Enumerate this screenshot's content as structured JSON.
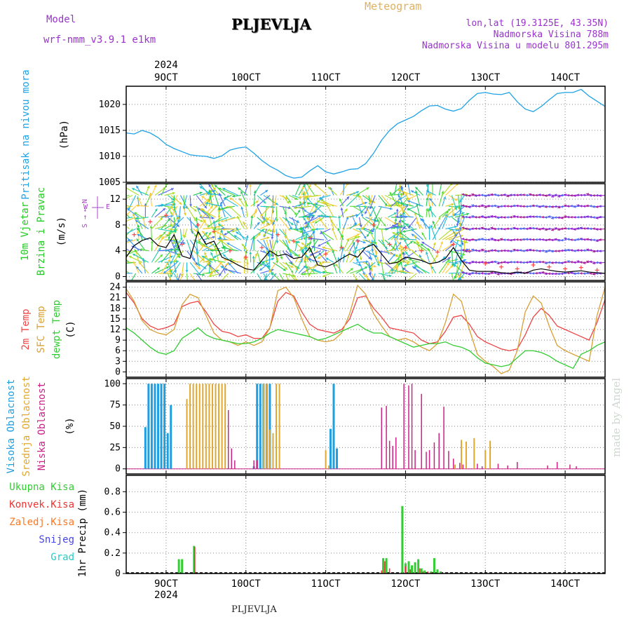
{
  "header": {
    "model_label": "Model",
    "model_name": "wrf-nmm_v3.9.1 e1km",
    "title": "PLJEVLJA",
    "product": "Meteogram",
    "lonlat": "lon,lat (19.3125E, 43.35N)",
    "elevation": "Nadmorska Visina 788m",
    "model_elevation": "Nadmorska Visina u modelu 801.295m",
    "footer_station": "PLJEVLJA",
    "watermark": "made by Angel"
  },
  "time_axis": {
    "year": "2024",
    "top_labels": [
      "9OCT",
      "10OCT",
      "11OCT",
      "12OCT",
      "13OCT",
      "14OCT"
    ],
    "bottom_labels": [
      "9OCT",
      "10OCT",
      "11OCT",
      "12OCT",
      "13OCT",
      "14OCT"
    ],
    "start_day": 8.5,
    "end_day": 14.5
  },
  "colors": {
    "pressure": "#1fa3e6",
    "t2m": "#ee4444",
    "sfc": "#d8a034",
    "dewpt": "#33cc33",
    "high_cloud": "#1f9ee0",
    "mid_cloud": "#e0a830",
    "low_cloud": "#cc2288",
    "total_precip": "#33cc33",
    "conv_precip": "#ee3333",
    "ice_precip": "#ff7722",
    "snow": "#4444ee",
    "graupel": "#22cccc",
    "wind_black": "#000000",
    "wind_gust": "#ff4444"
  },
  "chart_data": [
    {
      "type": "line",
      "panel": "pressure",
      "ylabel_1": "Pritisak na nivou mora",
      "ylabel_2": "(hPa)",
      "ylim": [
        1005,
        1023.5
      ],
      "yticks": [
        "1005",
        "1010",
        "1015",
        "1020"
      ],
      "series": [
        {
          "x": [
            8.5,
            8.6,
            8.7,
            8.8,
            8.9,
            9.0,
            9.1,
            9.2,
            9.3,
            9.4,
            9.5,
            9.6,
            9.7,
            9.8,
            9.9,
            10.0,
            10.1,
            10.2,
            10.3,
            10.4,
            10.5,
            10.6,
            10.7,
            10.8,
            10.9,
            11.0,
            11.1,
            11.2,
            11.3,
            11.4,
            11.5,
            11.6,
            11.7,
            11.8,
            11.9,
            12.0,
            12.1,
            12.2,
            12.3,
            12.4,
            12.5,
            12.6,
            12.7,
            12.8,
            12.9,
            13.0,
            13.1,
            13.2,
            13.3,
            13.4,
            13.5,
            13.6,
            13.7,
            13.8,
            13.9,
            14.0,
            14.1,
            14.2,
            14.3,
            14.4,
            14.5
          ],
          "values": [
            1014.5,
            1014.3,
            1015.0,
            1014.5,
            1013.6,
            1012.3,
            1011.5,
            1010.9,
            1010.3,
            1010.1,
            1010.0,
            1009.6,
            1010.1,
            1011.2,
            1011.6,
            1011.8,
            1010.6,
            1009.2,
            1008.1,
            1007.3,
            1006.3,
            1005.8,
            1006.0,
            1007.2,
            1008.2,
            1007.0,
            1006.6,
            1007.0,
            1007.5,
            1007.6,
            1008.6,
            1010.6,
            1013.1,
            1015.0,
            1016.3,
            1017.0,
            1017.7,
            1018.8,
            1019.7,
            1019.8,
            1019.1,
            1018.7,
            1019.2,
            1020.8,
            1022.1,
            1022.3,
            1022.0,
            1021.9,
            1022.3,
            1020.5,
            1019.1,
            1018.6,
            1019.6,
            1020.9,
            1022.1,
            1022.3,
            1022.3,
            1022.9,
            1021.6,
            1020.6,
            1019.6
          ]
        }
      ]
    },
    {
      "type": "line",
      "panel": "wind",
      "ylabel_1": "10m Vjetar",
      "ylabel_2": "Brzina i Pravac",
      "ylabel_3": "(m/s)",
      "compass_labels": [
        "N",
        "W",
        "E",
        "S"
      ],
      "ylim": [
        -0.6,
        14.4
      ],
      "yticks": [
        "0",
        "4",
        "8",
        "12"
      ],
      "series": [
        {
          "x": [
            8.5,
            8.6,
            8.7,
            8.8,
            8.9,
            9.0,
            9.1,
            9.2,
            9.3,
            9.4,
            9.5,
            9.6,
            9.7,
            9.8,
            9.9,
            10.0,
            10.1,
            10.2,
            10.3,
            10.4,
            10.5,
            10.6,
            10.7,
            10.8,
            10.9,
            11.0,
            11.1,
            11.2,
            11.3,
            11.4,
            11.5,
            11.6,
            11.7,
            11.8,
            11.9,
            12.0,
            12.1,
            12.2,
            12.3,
            12.4,
            12.5,
            12.6,
            12.7,
            12.8,
            12.9,
            13.0,
            13.1,
            13.2,
            13.3,
            13.4,
            13.5,
            13.6,
            13.7,
            13.8,
            13.9,
            14.0,
            14.1,
            14.2,
            14.3,
            14.4,
            14.5
          ],
          "values": [
            3.0,
            4.8,
            5.6,
            6.0,
            4.8,
            4.5,
            6.5,
            3.2,
            2.8,
            7.0,
            5.0,
            5.5,
            3.0,
            2.5,
            1.8,
            1.2,
            1.0,
            2.5,
            4.0,
            3.2,
            3.5,
            2.8,
            3.0,
            4.5,
            1.8,
            1.5,
            2.0,
            2.8,
            3.5,
            3.0,
            4.5,
            5.0,
            3.5,
            2.0,
            2.2,
            3.0,
            2.8,
            2.5,
            2.0,
            2.2,
            2.8,
            4.5,
            2.5,
            1.0,
            0.8,
            0.8,
            0.8,
            0.6,
            0.5,
            0.7,
            0.5,
            1.0,
            1.2,
            1.0,
            0.8,
            0.7,
            0.8,
            0.9,
            0.7,
            0.6,
            0.5
          ]
        },
        {
          "x": [
            8.6,
            8.8,
            9.0,
            9.2,
            9.4,
            9.6,
            9.8,
            10.0,
            10.2,
            10.4,
            10.6,
            10.8,
            11.0,
            11.2,
            11.4,
            11.6,
            11.8,
            12.0,
            12.2,
            12.4,
            12.6,
            12.8,
            13.0,
            13.2,
            13.4,
            13.6,
            13.8,
            14.0,
            14.2,
            14.4
          ],
          "values": [
            6.5,
            8.5,
            9.5,
            5.0,
            8.0,
            7.0,
            4.0,
            3.0,
            4.5,
            6.5,
            5.5,
            6.0,
            3.5,
            4.5,
            5.5,
            8.0,
            5.0,
            4.5,
            4.0,
            3.8,
            5.0,
            4.0,
            2.0,
            1.5,
            1.2,
            1.8,
            1.5,
            1.2,
            1.4,
            1.0
          ]
        }
      ],
      "arrow_rows": [
        12.6,
        10.9,
        9.2,
        7.4,
        5.7,
        4.0,
        2.2,
        0.5
      ]
    },
    {
      "type": "line",
      "panel": "temperature",
      "ylabel_1": "2m Temp",
      "ylabel_2": "SFC Temp",
      "ylabel_3": "dewpt Temp",
      "ylabel_4": "(C)",
      "ylim": [
        -1.5,
        25.5
      ],
      "yticks": [
        "0",
        "3",
        "6",
        "9",
        "12",
        "15",
        "18",
        "21",
        "24"
      ],
      "series": [
        {
          "name": "2m Temp",
          "x": [
            8.5,
            8.6,
            8.7,
            8.8,
            8.9,
            9.0,
            9.1,
            9.2,
            9.3,
            9.4,
            9.5,
            9.6,
            9.7,
            9.8,
            9.9,
            10.0,
            10.1,
            10.2,
            10.3,
            10.4,
            10.5,
            10.6,
            10.7,
            10.8,
            10.9,
            11.0,
            11.1,
            11.2,
            11.3,
            11.4,
            11.5,
            11.6,
            11.7,
            11.8,
            11.9,
            12.0,
            12.1,
            12.2,
            12.3,
            12.4,
            12.5,
            12.6,
            12.7,
            12.8,
            12.9,
            13.0,
            13.1,
            13.2,
            13.3,
            13.4,
            13.5,
            13.6,
            13.7,
            13.8,
            13.9,
            14.0,
            14.1,
            14.2,
            14.3,
            14.4,
            14.5
          ],
          "values": [
            22.5,
            19.5,
            15.0,
            13.0,
            12.0,
            12.5,
            13.5,
            18.5,
            19.5,
            20.0,
            17.0,
            13.5,
            11.5,
            11.0,
            10.0,
            10.5,
            9.5,
            9.5,
            12.5,
            20.0,
            22.5,
            21.5,
            17.0,
            13.5,
            12.0,
            11.5,
            11.0,
            12.0,
            15.0,
            21.0,
            21.5,
            18.0,
            15.5,
            12.5,
            12.0,
            11.5,
            11.0,
            9.0,
            8.0,
            8.5,
            11.5,
            15.5,
            16.0,
            13.5,
            10.0,
            8.5,
            7.5,
            6.5,
            6.0,
            6.5,
            10.5,
            15.5,
            18.0,
            16.0,
            13.0,
            12.0,
            11.0,
            10.0,
            9.0,
            14.0,
            20.5
          ]
        },
        {
          "name": "SFC Temp",
          "x": [
            8.5,
            8.6,
            8.7,
            8.8,
            8.9,
            9.0,
            9.1,
            9.2,
            9.3,
            9.4,
            9.5,
            9.6,
            9.7,
            9.8,
            9.9,
            10.0,
            10.1,
            10.2,
            10.3,
            10.4,
            10.5,
            10.6,
            10.7,
            10.8,
            10.9,
            11.0,
            11.1,
            11.2,
            11.3,
            11.4,
            11.5,
            11.6,
            11.7,
            11.8,
            11.9,
            12.0,
            12.1,
            12.2,
            12.3,
            12.4,
            12.5,
            12.6,
            12.7,
            12.8,
            12.9,
            13.0,
            13.1,
            13.2,
            13.3,
            13.4,
            13.5,
            13.6,
            13.7,
            13.8,
            13.9,
            14.0,
            14.1,
            14.2,
            14.3,
            14.4,
            14.5
          ],
          "values": [
            23.5,
            20.0,
            14.5,
            12.0,
            11.0,
            10.5,
            12.0,
            19.0,
            22.0,
            21.0,
            16.0,
            11.0,
            9.0,
            8.5,
            7.5,
            8.5,
            7.5,
            8.5,
            12.5,
            23.0,
            24.0,
            21.0,
            15.0,
            10.0,
            9.0,
            8.5,
            9.0,
            11.0,
            16.5,
            24.5,
            22.0,
            16.5,
            13.0,
            10.0,
            9.0,
            9.5,
            8.5,
            7.0,
            6.0,
            8.0,
            14.0,
            22.0,
            20.0,
            12.0,
            5.0,
            3.0,
            1.5,
            -0.5,
            0.5,
            6.0,
            17.0,
            21.5,
            19.5,
            13.0,
            7.5,
            6.0,
            5.0,
            4.0,
            3.0,
            16.0,
            24.0
          ]
        },
        {
          "name": "dewpt Temp",
          "x": [
            8.5,
            8.6,
            8.7,
            8.8,
            8.9,
            9.0,
            9.1,
            9.2,
            9.3,
            9.4,
            9.5,
            9.6,
            9.7,
            9.8,
            9.9,
            10.0,
            10.1,
            10.2,
            10.3,
            10.4,
            10.5,
            10.6,
            10.7,
            10.8,
            10.9,
            11.0,
            11.1,
            11.2,
            11.3,
            11.4,
            11.5,
            11.6,
            11.7,
            11.8,
            11.9,
            12.0,
            12.1,
            12.2,
            12.3,
            12.4,
            12.5,
            12.6,
            12.7,
            12.8,
            12.9,
            13.0,
            13.1,
            13.2,
            13.3,
            13.4,
            13.5,
            13.6,
            13.7,
            13.8,
            13.9,
            14.0,
            14.1,
            14.2,
            14.3,
            14.4,
            14.5
          ],
          "values": [
            12.5,
            11.0,
            9.0,
            7.0,
            5.5,
            5.0,
            6.0,
            9.5,
            11.0,
            12.5,
            10.5,
            9.5,
            9.0,
            8.5,
            8.0,
            8.0,
            8.5,
            9.5,
            11.0,
            12.0,
            11.5,
            11.0,
            10.5,
            10.0,
            9.0,
            9.5,
            10.5,
            11.5,
            12.5,
            13.5,
            12.0,
            11.0,
            11.0,
            10.0,
            9.0,
            8.0,
            7.0,
            7.5,
            8.0,
            8.0,
            8.5,
            7.5,
            7.0,
            6.0,
            4.0,
            2.5,
            2.0,
            1.5,
            2.0,
            4.0,
            6.0,
            6.0,
            5.5,
            4.5,
            3.0,
            2.0,
            1.0,
            5.0,
            6.0,
            7.5,
            8.5
          ]
        }
      ]
    },
    {
      "type": "bar",
      "panel": "cloud",
      "ylabel_1": "Visoka Oblacnost",
      "ylabel_2": "Srednja Oblacnost",
      "ylabel_3": "Niska Oblacnost",
      "ylabel_4": "(%)",
      "ylim": [
        -6,
        106
      ],
      "yticks": [
        "0",
        "25",
        "50",
        "75",
        "100"
      ],
      "series": [
        {
          "name": "Visoka Oblacnost",
          "x": [
            8.74,
            8.78,
            8.82,
            8.86,
            8.9,
            8.94,
            8.98,
            9.02,
            9.06,
            10.1,
            10.14,
            10.18,
            10.22,
            10.26,
            10.3,
            11.06,
            11.1,
            11.14
          ],
          "values": [
            49,
            100,
            100,
            100,
            100,
            100,
            100,
            42,
            75,
            3,
            100,
            100,
            100,
            100,
            100,
            47,
            100,
            24
          ]
        },
        {
          "name": "Srednja Oblacnost",
          "x": [
            9.26,
            9.3,
            9.34,
            9.38,
            9.42,
            9.46,
            9.5,
            9.54,
            9.58,
            9.62,
            9.66,
            9.7,
            9.74,
            10.22,
            10.26,
            10.3,
            10.34,
            10.38,
            10.42,
            11.0,
            11.04,
            12.62,
            12.7,
            12.76,
            12.86,
            13.0,
            13.06
          ],
          "values": [
            82,
            100,
            100,
            100,
            100,
            100,
            100,
            100,
            100,
            100,
            100,
            100,
            100,
            100,
            100,
            46,
            42,
            100,
            100,
            22,
            4,
            5,
            34,
            32,
            36,
            22,
            33
          ]
        },
        {
          "name": "Niska Oblacnost",
          "x": [
            9.78,
            9.82,
            9.86,
            10.1,
            10.14,
            11.7,
            11.76,
            11.8,
            11.84,
            11.88,
            11.98,
            12.04,
            12.08,
            12.12,
            12.2,
            12.26,
            12.3,
            12.36,
            12.42,
            12.48,
            12.54,
            12.6,
            12.68,
            12.72,
            12.9,
            12.96,
            13.16,
            13.28,
            13.4,
            13.78,
            13.9,
            14.06,
            14.14
          ],
          "values": [
            69,
            24,
            10,
            10,
            10,
            72,
            74,
            33,
            27,
            37,
            100,
            98,
            100,
            22,
            88,
            20,
            22,
            31,
            42,
            73,
            21,
            12,
            7,
            5,
            6,
            3,
            6,
            4,
            8,
            4,
            8,
            5,
            3
          ]
        }
      ]
    },
    {
      "type": "bar",
      "panel": "precip",
      "legend": [
        "Ukupna Kisa",
        "Konvek.Kisa",
        "Zaledj.Kisa",
        "Snijeg",
        "Grad"
      ],
      "ylabel_1": "1hr Precip",
      "ylabel_2": "(mm)",
      "ylim": [
        0,
        0.96
      ],
      "yticks": [
        "0",
        "0.2",
        "0.4",
        "0.6",
        "0.8"
      ],
      "series": [
        {
          "name": "Ukupna Kisa",
          "x": [
            9.16,
            9.2,
            9.35,
            11.72,
            11.76,
            11.96,
            12.0,
            12.04,
            12.08,
            12.12,
            12.16,
            12.2,
            12.24,
            12.32,
            12.36,
            12.4,
            12.44
          ],
          "values": [
            0.14,
            0.14,
            0.27,
            0.15,
            0.15,
            0.66,
            0.1,
            0.12,
            0.08,
            0.11,
            0.14,
            0.05,
            0.03,
            0.02,
            0.15,
            0.04,
            0.02
          ]
        },
        {
          "name": "Konvek.Kisa",
          "x": [
            9.36,
            11.7,
            11.74,
            11.8,
            12.0,
            12.06,
            12.18,
            12.22,
            12.28,
            12.32
          ],
          "values": [
            0.26,
            0.03,
            0.12,
            0.05,
            0.07,
            0.04,
            0.05,
            0.02,
            0.02,
            0.01
          ]
        }
      ]
    }
  ]
}
